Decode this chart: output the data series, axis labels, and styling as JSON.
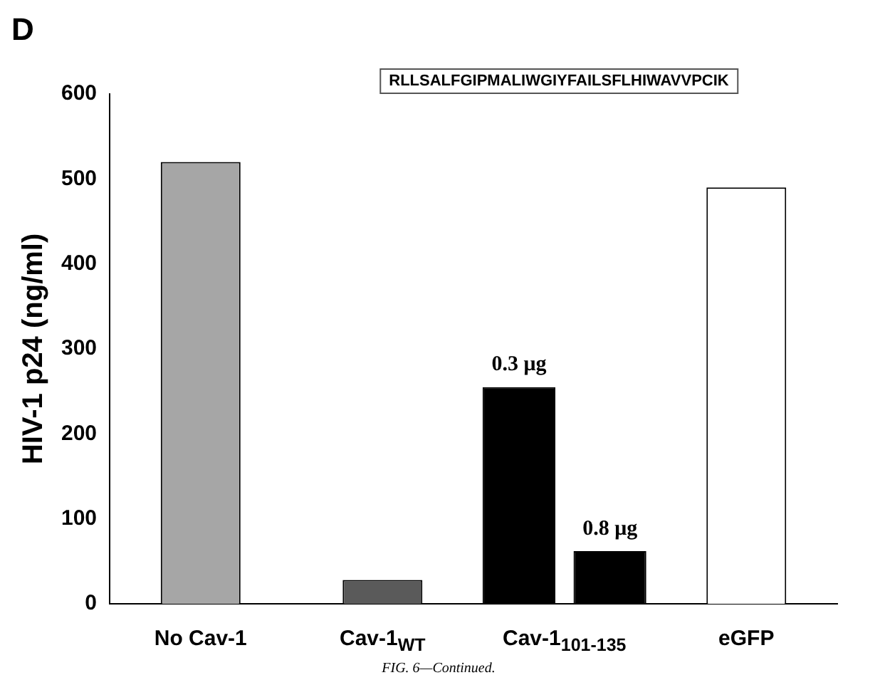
{
  "chart_data": {
    "type": "bar",
    "title": "D",
    "ylabel": "HIV-1 p24 (ng/ml)",
    "categories": [
      "No Cav-1",
      "Cav-1$_{WT}$",
      "Cav-1$_{101-135}$",
      "eGFP"
    ],
    "series": [
      {
        "colors": [
          "#a6a6a6",
          "#5a5a5a",
          null,
          "#ffffff"
        ],
        "values": [
          520,
          28,
          null,
          490
        ]
      },
      {
        "name": "0.3 μg",
        "color": "#000000",
        "values": [
          null,
          null,
          255,
          null
        ]
      },
      {
        "name": "0.8 μg",
        "color": "#000000",
        "values": [
          null,
          null,
          62,
          null
        ]
      }
    ],
    "ylim": [
      0,
      600
    ],
    "yticks": [
      0,
      100,
      200,
      300,
      400,
      500,
      600
    ],
    "grid": false,
    "legend": false,
    "annotations": [
      "RLLSALFGIPMALIWGIYFAILSFLHIWAVVPCIK",
      "FIG. 6—Continued."
    ]
  }
}
